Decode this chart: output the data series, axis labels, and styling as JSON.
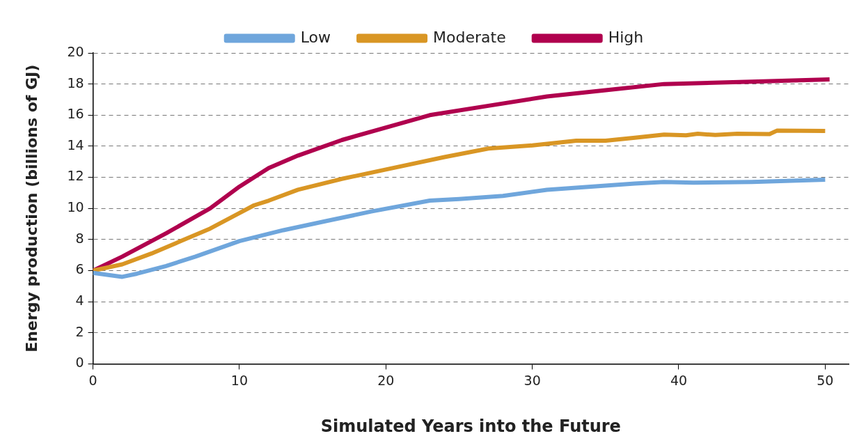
{
  "chart_data": {
    "type": "line",
    "xlabel": "Simulated Years into the Future",
    "ylabel": "Energy production (billions of GJ)",
    "xlim": [
      0,
      51.6
    ],
    "xticks": [
      0,
      10,
      20,
      30,
      40,
      50
    ],
    "ylim": [
      0,
      20
    ],
    "yticks": [
      0,
      2,
      4,
      6,
      8,
      10,
      12,
      14,
      16,
      18,
      20
    ],
    "grid": "y",
    "legend": "top",
    "marker": "none",
    "line_style": "solid",
    "series": [
      {
        "name": "Low",
        "color": "#6fa6dc",
        "x": [
          0,
          2,
          3,
          5,
          7,
          10,
          13,
          16,
          19,
          23,
          25,
          28,
          31,
          34,
          37,
          39,
          41,
          45,
          50
        ],
        "values": [
          5.85,
          5.6,
          5.8,
          6.3,
          6.9,
          7.9,
          8.6,
          9.2,
          9.8,
          10.5,
          10.6,
          10.8,
          11.2,
          11.4,
          11.6,
          11.7,
          11.65,
          11.7,
          11.85
        ]
      },
      {
        "name": "Moderate",
        "color": "#d99624",
        "x": [
          0,
          2,
          4,
          6,
          8,
          10,
          11,
          12,
          14,
          17,
          20,
          24,
          27,
          30,
          33,
          35,
          37,
          39,
          40.5,
          41.3,
          42.5,
          44,
          46.2,
          46.7,
          50
        ],
        "values": [
          6,
          6.4,
          7.1,
          7.9,
          8.7,
          9.7,
          10.2,
          10.5,
          11.2,
          11.9,
          12.5,
          13.3,
          13.85,
          14.05,
          14.35,
          14.35,
          14.55,
          14.75,
          14.7,
          14.8,
          14.72,
          14.8,
          14.78,
          15,
          14.98
        ]
      },
      {
        "name": "High",
        "color": "#b0004e",
        "x": [
          0,
          2,
          5,
          8,
          10,
          12,
          14,
          17,
          20,
          23,
          27,
          31,
          35,
          39,
          45,
          50.3
        ],
        "values": [
          6,
          6.9,
          8.4,
          10,
          11.4,
          12.6,
          13.4,
          14.4,
          15.2,
          16,
          16.6,
          17.2,
          17.6,
          18,
          18.15,
          18.3
        ]
      }
    ]
  }
}
